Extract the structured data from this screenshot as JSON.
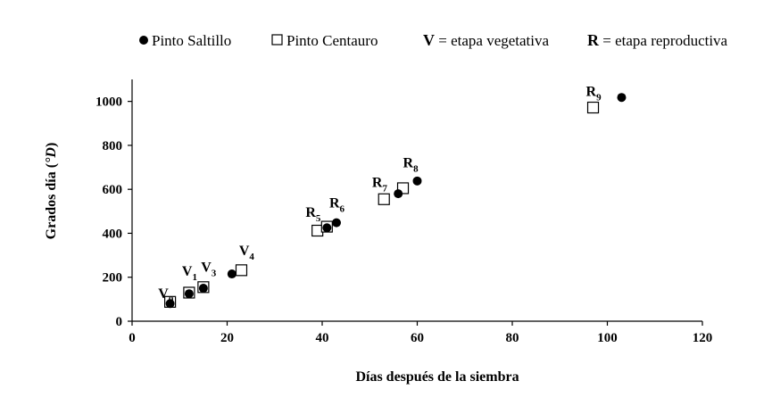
{
  "chart_data": {
    "type": "scatter",
    "xlabel": "Días después de la siembra",
    "ylabel_prefix": "Grados día (",
    "ylabel_unit": "°D",
    "ylabel_suffix": ")",
    "xlim": [
      0,
      120
    ],
    "ylim": [
      0,
      1100
    ],
    "x_ticks": [
      0,
      20,
      40,
      60,
      80,
      100,
      120
    ],
    "y_ticks": [
      0,
      200,
      400,
      600,
      800,
      1000
    ],
    "grid": false,
    "legend": {
      "position": "top",
      "entries": [
        {
          "marker": "filled-circle",
          "label": "Pinto Saltillo"
        },
        {
          "marker": "open-square",
          "label": "Pinto Centauro"
        }
      ],
      "notes": [
        {
          "key": "V",
          "text": " = etapa vegetativa"
        },
        {
          "key": "R",
          "text": " = etapa reproductiva"
        }
      ]
    },
    "series": [
      {
        "name": "Pinto Saltillo",
        "marker": "filled-circle",
        "color": "#000000",
        "points": [
          {
            "x": 8,
            "y": 80
          },
          {
            "x": 12,
            "y": 125
          },
          {
            "x": 15,
            "y": 150
          },
          {
            "x": 21,
            "y": 215
          },
          {
            "x": 41,
            "y": 425
          },
          {
            "x": 43,
            "y": 448
          },
          {
            "x": 56,
            "y": 580
          },
          {
            "x": 60,
            "y": 638
          },
          {
            "x": 103,
            "y": 1018
          }
        ]
      },
      {
        "name": "Pinto Centauro",
        "marker": "open-square",
        "color": "#000000",
        "points": [
          {
            "x": 8,
            "y": 88
          },
          {
            "x": 12,
            "y": 130
          },
          {
            "x": 15,
            "y": 155
          },
          {
            "x": 23,
            "y": 232
          },
          {
            "x": 39,
            "y": 412
          },
          {
            "x": 41,
            "y": 430
          },
          {
            "x": 53,
            "y": 555
          },
          {
            "x": 57,
            "y": 605
          },
          {
            "x": 97,
            "y": 972
          }
        ]
      }
    ],
    "annotations": [
      {
        "main": "V",
        "sub": "0",
        "x": 5.5,
        "y": 105
      },
      {
        "main": "V",
        "sub": "1",
        "x": 10.5,
        "y": 208
      },
      {
        "main": "V",
        "sub": "3",
        "x": 14.5,
        "y": 225
      },
      {
        "main": "V",
        "sub": "4",
        "x": 22.5,
        "y": 300
      },
      {
        "main": "R",
        "sub": "5",
        "x": 36.5,
        "y": 475
      },
      {
        "main": "R",
        "sub": "6",
        "x": 41.5,
        "y": 518
      },
      {
        "main": "R",
        "sub": "7",
        "x": 50.5,
        "y": 610
      },
      {
        "main": "R",
        "sub": "8",
        "x": 57.0,
        "y": 700
      },
      {
        "main": "R",
        "sub": "9",
        "x": 95.5,
        "y": 1025
      }
    ]
  }
}
